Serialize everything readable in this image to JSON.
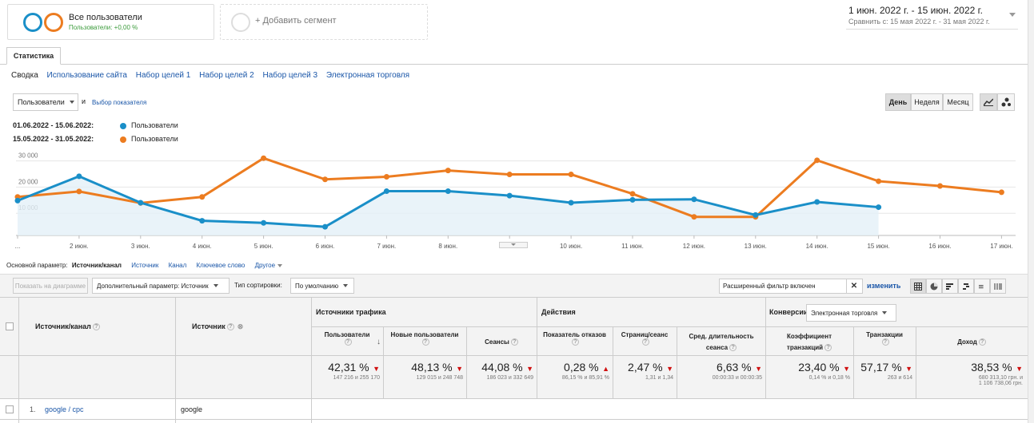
{
  "segments": {
    "all_users_label": "Все пользователи",
    "all_users_sub": "Пользователи: +0,00 %",
    "add_segment_label": "+ Добавить сегмент"
  },
  "daterange": {
    "main": "1 июн. 2022 г. - 15 июн. 2022 г.",
    "compare_prefix": "Сравнить с:",
    "compare": "15 мая 2022 г. - 31 мая 2022 г."
  },
  "tabs": {
    "active": "Статистика",
    "subnav": [
      "Сводка",
      "Использование сайта",
      "Набор целей 1",
      "Набор целей 2",
      "Набор целей 3",
      "Электронная торговля"
    ]
  },
  "chart_controls": {
    "metric_select": "Пользователи",
    "and_label": "и",
    "choose_metric": "Выбор показателя",
    "day": "День",
    "week": "Неделя",
    "month": "Месяц"
  },
  "legend": {
    "range1": "01.06.2022 - 15.06.2022:",
    "range1_series": "Пользователи",
    "range2": "15.05.2022 - 31.05.2022:",
    "range2_series": "Пользователи"
  },
  "colors": {
    "series1": "#1a8fc8",
    "series2": "#ec7c20",
    "accent": "#1a56a8",
    "down": "#d01010"
  },
  "chart_data": {
    "type": "line",
    "y_ticks": [
      "30 000",
      "20 000",
      "10 000"
    ],
    "ylim": [
      0,
      32000
    ],
    "x_labels": [
      "...",
      "2 июн.",
      "3 июн.",
      "4 июн.",
      "5 июн.",
      "6 июн.",
      "7 июн.",
      "8 июн.",
      "9 июн.",
      "10 июн.",
      "11 июн.",
      "12 июн.",
      "13 июн.",
      "14 июн.",
      "15 июн.",
      "16 июн.",
      "17 июн."
    ],
    "series": [
      {
        "name": "Пользователи",
        "values": [
          13300,
          22600,
          12500,
          5600,
          4800,
          3300,
          16900,
          16900,
          15200,
          12500,
          13600,
          13800,
          7800,
          12800,
          10800
        ]
      },
      {
        "name": "Пользователи",
        "values": [
          14700,
          16800,
          12400,
          14700,
          29500,
          21400,
          22400,
          24800,
          23300,
          23300,
          15900,
          7100,
          7100,
          28700,
          20700,
          18900,
          16500
        ]
      }
    ]
  },
  "dimension_bar": {
    "primary_label": "Основной параметр:",
    "primary_value": "Источник/канал",
    "options": [
      "Источник",
      "Канал",
      "Ключевое слово",
      "Другое"
    ]
  },
  "toolbar": {
    "plot_rows": "Показать на диаграмме",
    "secondary_dim": "Дополнительный параметр: Источник",
    "sort_label": "Тип сортировки:",
    "sort_value": "По умолчанию",
    "filter_value": "Расширенный фильтр включен",
    "change_link": "изменить"
  },
  "table": {
    "col_source_medium": "Источник/канал",
    "col_source": "Источник",
    "group_acquisition": "Источники трафика",
    "group_behavior": "Действия",
    "group_conversions": "Конверсии",
    "conversions_select": "Электронная торговля",
    "metrics": [
      {
        "label": "Пользователи",
        "pct": "42,31 %",
        "detail": "147 216 и 255 170"
      },
      {
        "label": "Новые пользователи",
        "pct": "48,13 %",
        "detail": "129 015 и 248 748"
      },
      {
        "label": "Сеансы",
        "pct": "44,08 %",
        "detail": "186 023 и 332 649"
      },
      {
        "label": "Показатель отказов",
        "pct": "0,28 %",
        "detail": "86,15 % и 85,91 %"
      },
      {
        "label": "Страниц/сеанс",
        "pct": "2,47 %",
        "detail": "1,31 и 1,34"
      },
      {
        "label": "Сред. длительность сеанса",
        "pct": "6,63 %",
        "detail": "00:00:33 и 00:00:35"
      },
      {
        "label": "Коэффициент транзакций",
        "pct": "23,40 %",
        "detail": "0,14 % и 0,18 %"
      },
      {
        "label": "Транзакции",
        "pct": "57,17 %",
        "detail": "263 и 614"
      },
      {
        "label": "Доход",
        "pct": "38,53 %",
        "detail": "680 313,10 грн. и",
        "detail2": "1 106 738,06 грн."
      }
    ],
    "rows": [
      {
        "index": "1.",
        "source_medium": "google / cpc",
        "source": "google"
      }
    ]
  }
}
